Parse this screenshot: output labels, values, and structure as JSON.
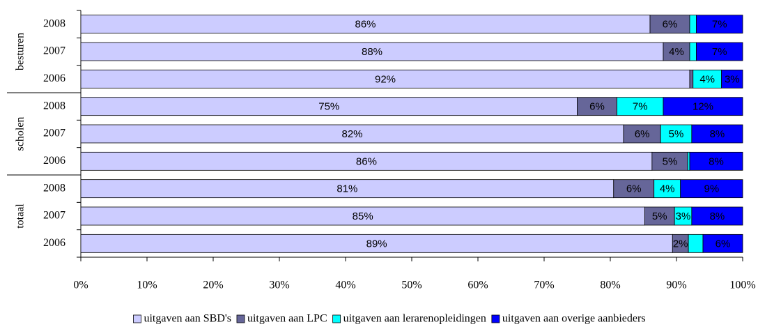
{
  "chart_data": {
    "type": "stacked-bar-horizontal",
    "groups": [
      "besturen",
      "scholen",
      "totaal"
    ],
    "categories": [
      "2008",
      "2007",
      "2006",
      "2008",
      "2007",
      "2006",
      "2008",
      "2007",
      "2006"
    ],
    "series": [
      {
        "name": "uitgaven aan SBD's",
        "color": "#ccccff",
        "values": [
          86,
          88,
          92,
          75,
          82,
          86.3,
          80.5,
          85.2,
          89.4
        ],
        "value_labels": [
          "86%",
          "88%",
          "92%",
          "75%",
          "82%",
          "86%",
          "81%",
          "85%",
          "89%"
        ]
      },
      {
        "name": "uitgaven aan LPC",
        "color": "#666699",
        "values": [
          6,
          4,
          0.5,
          6,
          5.6,
          5.4,
          6.1,
          4.5,
          2.4
        ],
        "value_labels": [
          "6%",
          "4%",
          null,
          "6%",
          "6%",
          "5%",
          "6%",
          "5%",
          "2%"
        ]
      },
      {
        "name": "uitgaven aan lerarenopleidingen",
        "color": "#00ffff",
        "values": [
          1,
          1,
          4.3,
          7,
          4.7,
          0.3,
          4,
          2.6,
          2.2
        ],
        "value_labels": [
          null,
          null,
          "4%",
          "7%",
          "5%",
          null,
          "4%",
          "3%",
          null
        ]
      },
      {
        "name": "uitgaven aan overige aanbieders",
        "color": "#0000ff",
        "values": [
          7,
          7,
          3.2,
          12,
          7.7,
          8,
          9.4,
          7.7,
          6
        ],
        "value_labels": [
          "7%",
          "7%",
          "3%",
          "12%",
          "8%",
          "8%",
          "9%",
          "8%",
          "6%"
        ]
      }
    ],
    "xlim": [
      0,
      100
    ],
    "xticks": [
      {
        "value": 0,
        "label": "0%"
      },
      {
        "value": 10,
        "label": "10%"
      },
      {
        "value": 20,
        "label": "20%"
      },
      {
        "value": 30,
        "label": "30%"
      },
      {
        "value": 40,
        "label": "40%"
      },
      {
        "value": 50,
        "label": "50%"
      },
      {
        "value": 60,
        "label": "60%"
      },
      {
        "value": 70,
        "label": "70%"
      },
      {
        "value": 80,
        "label": "80%"
      },
      {
        "value": 90,
        "label": "90%"
      },
      {
        "value": 100,
        "label": "100%"
      }
    ],
    "legend": "bottom"
  }
}
